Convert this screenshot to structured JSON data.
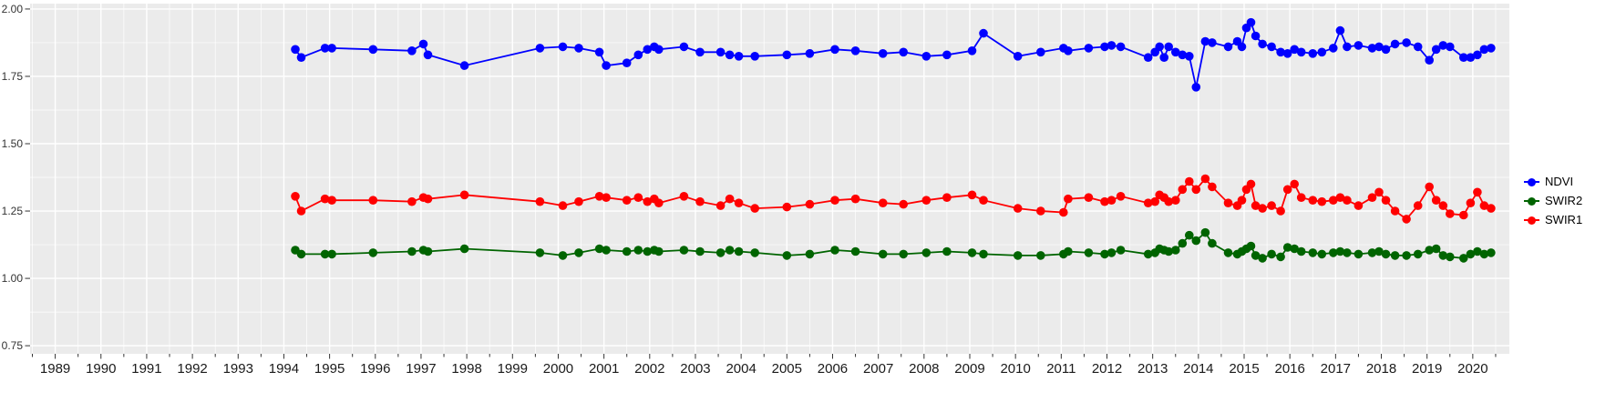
{
  "chart_data": {
    "type": "line",
    "title": "",
    "xlabel": "",
    "ylabel": "",
    "grid": true,
    "legend_position": "right",
    "panel_background": "#EBEBEB",
    "gridline_color": "#FFFFFF",
    "axis_text_color": "#333333",
    "xlim": [
      1988.45,
      2020.8
    ],
    "ylim": [
      0.72,
      2.02
    ],
    "x_ticks": [
      1989,
      1990,
      1991,
      1992,
      1993,
      1994,
      1995,
      1996,
      1997,
      1998,
      1999,
      2000,
      2001,
      2002,
      2003,
      2004,
      2005,
      2006,
      2007,
      2008,
      2009,
      2010,
      2011,
      2012,
      2013,
      2014,
      2015,
      2016,
      2017,
      2018,
      2019,
      2020
    ],
    "y_ticks": [
      0.75,
      1.0,
      1.25,
      1.5,
      1.75,
      2.0
    ],
    "x": [
      1994.25,
      1994.38,
      1994.9,
      1995.05,
      1995.95,
      1996.8,
      1997.05,
      1997.15,
      1997.95,
      1999.6,
      2000.1,
      2000.45,
      2000.9,
      2001.05,
      2001.5,
      2001.75,
      2001.95,
      2002.1,
      2002.2,
      2002.75,
      2003.1,
      2003.55,
      2003.75,
      2003.95,
      2004.3,
      2005.0,
      2005.5,
      2006.05,
      2006.5,
      2007.1,
      2007.55,
      2008.05,
      2008.5,
      2009.05,
      2009.3,
      2010.05,
      2010.55,
      2011.05,
      2011.15,
      2011.6,
      2011.95,
      2012.1,
      2012.3,
      2012.9,
      2013.05,
      2013.15,
      2013.25,
      2013.35,
      2013.5,
      2013.65,
      2013.8,
      2013.95,
      2014.15,
      2014.3,
      2014.65,
      2014.85,
      2014.95,
      2015.05,
      2015.15,
      2015.25,
      2015.4,
      2015.6,
      2015.8,
      2015.95,
      2016.1,
      2016.25,
      2016.5,
      2016.7,
      2016.95,
      2017.1,
      2017.25,
      2017.5,
      2017.8,
      2017.95,
      2018.1,
      2018.3,
      2018.55,
      2018.8,
      2019.05,
      2019.2,
      2019.35,
      2019.5,
      2019.8,
      2019.95,
      2020.1,
      2020.25,
      2020.4
    ],
    "series": [
      {
        "name": "NDVI",
        "color": "#0000FF",
        "values": [
          1.85,
          1.82,
          1.855,
          1.855,
          1.85,
          1.845,
          1.87,
          1.83,
          1.79,
          1.855,
          1.86,
          1.855,
          1.84,
          1.79,
          1.8,
          1.83,
          1.85,
          1.86,
          1.85,
          1.86,
          1.84,
          1.84,
          1.83,
          1.825,
          1.825,
          1.83,
          1.835,
          1.85,
          1.845,
          1.835,
          1.84,
          1.825,
          1.83,
          1.845,
          1.91,
          1.825,
          1.84,
          1.855,
          1.845,
          1.855,
          1.86,
          1.865,
          1.86,
          1.82,
          1.84,
          1.86,
          1.82,
          1.86,
          1.84,
          1.83,
          1.825,
          1.71,
          1.88,
          1.875,
          1.86,
          1.88,
          1.86,
          1.93,
          1.95,
          1.9,
          1.87,
          1.86,
          1.84,
          1.835,
          1.85,
          1.84,
          1.835,
          1.84,
          1.855,
          1.92,
          1.86,
          1.865,
          1.855,
          1.86,
          1.85,
          1.87,
          1.875,
          1.86,
          1.81,
          1.85,
          1.865,
          1.86,
          1.82,
          1.82,
          1.83,
          1.85,
          1.855
        ]
      },
      {
        "name": "SWIR2",
        "color": "#006400",
        "values": [
          1.105,
          1.09,
          1.09,
          1.09,
          1.095,
          1.1,
          1.105,
          1.1,
          1.11,
          1.095,
          1.085,
          1.095,
          1.11,
          1.105,
          1.1,
          1.105,
          1.1,
          1.105,
          1.1,
          1.105,
          1.1,
          1.095,
          1.105,
          1.1,
          1.095,
          1.085,
          1.09,
          1.105,
          1.1,
          1.09,
          1.09,
          1.095,
          1.1,
          1.095,
          1.09,
          1.085,
          1.085,
          1.09,
          1.1,
          1.095,
          1.09,
          1.095,
          1.105,
          1.09,
          1.095,
          1.11,
          1.105,
          1.1,
          1.105,
          1.13,
          1.16,
          1.14,
          1.17,
          1.13,
          1.095,
          1.09,
          1.1,
          1.11,
          1.12,
          1.085,
          1.075,
          1.09,
          1.08,
          1.115,
          1.11,
          1.1,
          1.095,
          1.09,
          1.095,
          1.1,
          1.095,
          1.09,
          1.095,
          1.1,
          1.09,
          1.085,
          1.085,
          1.09,
          1.105,
          1.11,
          1.085,
          1.08,
          1.075,
          1.09,
          1.1,
          1.09,
          1.095
        ]
      },
      {
        "name": "SWIR1",
        "color": "#FF0000",
        "values": [
          1.305,
          1.25,
          1.295,
          1.29,
          1.29,
          1.285,
          1.3,
          1.295,
          1.31,
          1.285,
          1.27,
          1.285,
          1.305,
          1.3,
          1.29,
          1.3,
          1.285,
          1.295,
          1.28,
          1.305,
          1.285,
          1.27,
          1.295,
          1.28,
          1.26,
          1.265,
          1.275,
          1.29,
          1.295,
          1.28,
          1.275,
          1.29,
          1.3,
          1.31,
          1.29,
          1.26,
          1.25,
          1.245,
          1.295,
          1.3,
          1.285,
          1.29,
          1.305,
          1.28,
          1.285,
          1.31,
          1.3,
          1.285,
          1.29,
          1.33,
          1.36,
          1.33,
          1.37,
          1.34,
          1.28,
          1.27,
          1.29,
          1.33,
          1.35,
          1.27,
          1.26,
          1.27,
          1.25,
          1.33,
          1.35,
          1.3,
          1.29,
          1.285,
          1.29,
          1.3,
          1.29,
          1.27,
          1.3,
          1.32,
          1.29,
          1.25,
          1.22,
          1.27,
          1.34,
          1.29,
          1.27,
          1.24,
          1.235,
          1.28,
          1.32,
          1.27,
          1.26
        ]
      }
    ]
  }
}
